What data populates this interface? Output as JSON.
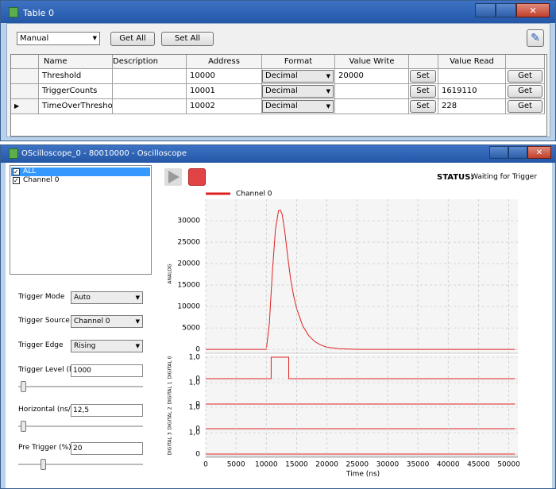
{
  "table_window": {
    "title": "Table 0",
    "mode": "Manual",
    "get_all": "Get All",
    "set_all": "Set All",
    "columns": [
      "Name",
      "Description",
      "Address",
      "Format",
      "Value Write",
      "Value Read"
    ],
    "rows": [
      {
        "name": "Threshold",
        "address": "10000",
        "format": "Decimal",
        "value_write": "20000"
      },
      {
        "name": "TriggerCounts",
        "address": "10001",
        "format": "Decimal",
        "value_read": "1619110"
      },
      {
        "name": "TimeOverThreshold",
        "address": "10002",
        "format": "Decimal",
        "value_read": "228"
      }
    ],
    "set": "Set",
    "get": "Get"
  },
  "scope_window": {
    "title": "OScilloscope_0 - 80010000 - Oscilloscope",
    "channels": [
      "ALL",
      "Channel 0"
    ],
    "controls": [
      {
        "label": "Trigger Mode",
        "value": "Auto",
        "kind": "select"
      },
      {
        "label": "Trigger Source",
        "value": "Channel 0",
        "kind": "select"
      },
      {
        "label": "Trigger Edge",
        "value": "Rising",
        "kind": "select"
      },
      {
        "label": "Trigger Level (lsb)",
        "value": "1000",
        "kind": "slider"
      },
      {
        "label": "Horizontal (ns/div)",
        "value": "12,5",
        "kind": "slider"
      },
      {
        "label": "Pre Trigger (%)",
        "value": "20",
        "kind": "slider"
      }
    ],
    "status_label": "STATUS:",
    "status": "Waiting for Trigger"
  },
  "chart_data": [
    {
      "type": "line",
      "y_label": "ANALOG",
      "xlim": [
        0,
        51500
      ],
      "ylim": [
        -900,
        35000
      ],
      "yticks": [
        0,
        5000,
        10000,
        15000,
        20000,
        25000,
        30000
      ],
      "grid": true,
      "legend": "top-left",
      "series": [
        {
          "name": "Channel 0",
          "color": "#e02020",
          "x": [
            0,
            10000,
            10500,
            11000,
            11500,
            12000,
            12300,
            12600,
            13000,
            13500,
            14000,
            14500,
            15000,
            16000,
            17000,
            18000,
            19000,
            20000,
            22000,
            25000,
            51000
          ],
          "values": [
            0,
            0,
            6000,
            18000,
            28000,
            32300,
            32500,
            31500,
            28000,
            22000,
            16500,
            12500,
            9500,
            5500,
            3200,
            1800,
            1000,
            500,
            150,
            0,
            0
          ]
        }
      ]
    },
    {
      "type": "line",
      "y_label": "DIGITAL 0",
      "xlim": [
        0,
        51500
      ],
      "ylim": [
        -0.1,
        1.1
      ],
      "yticks": [
        0,
        {
          "value": 1,
          "label": "1,0"
        }
      ],
      "series": [
        {
          "color": "#e02020",
          "x": [
            0,
            10800,
            10800,
            13700,
            13700,
            51000
          ],
          "values": [
            0,
            0,
            1,
            1,
            0,
            0
          ]
        }
      ]
    },
    {
      "type": "line",
      "y_label": "DIGITAL 1",
      "xlim": [
        0,
        51500
      ],
      "ylim": [
        -0.1,
        1.1
      ],
      "yticks": [
        0,
        {
          "value": 1,
          "label": "1,0"
        }
      ],
      "series": [
        {
          "color": "#e02020",
          "x": [
            0,
            51000
          ],
          "values": [
            0,
            0
          ]
        }
      ]
    },
    {
      "type": "line",
      "y_label": "DIGITAL 2",
      "xlim": [
        0,
        51500
      ],
      "ylim": [
        -0.1,
        1.1
      ],
      "yticks": [
        0,
        {
          "value": 1,
          "label": "1,0"
        }
      ],
      "series": [
        {
          "color": "#e02020",
          "x": [
            0,
            51000
          ],
          "values": [
            0,
            0
          ]
        }
      ]
    },
    {
      "type": "line",
      "y_label": "DIGITAL 3",
      "xlim": [
        0,
        51500
      ],
      "ylim": [
        -0.1,
        1.1
      ],
      "yticks": [
        0,
        {
          "value": 1,
          "label": "1,0"
        }
      ],
      "x_label": "Time (ns)",
      "xticks": [
        0,
        5000,
        10000,
        15000,
        20000,
        25000,
        30000,
        35000,
        40000,
        45000,
        50000
      ],
      "series": [
        {
          "color": "#e02020",
          "x": [
            0,
            51000
          ],
          "values": [
            0,
            0
          ]
        }
      ]
    }
  ]
}
